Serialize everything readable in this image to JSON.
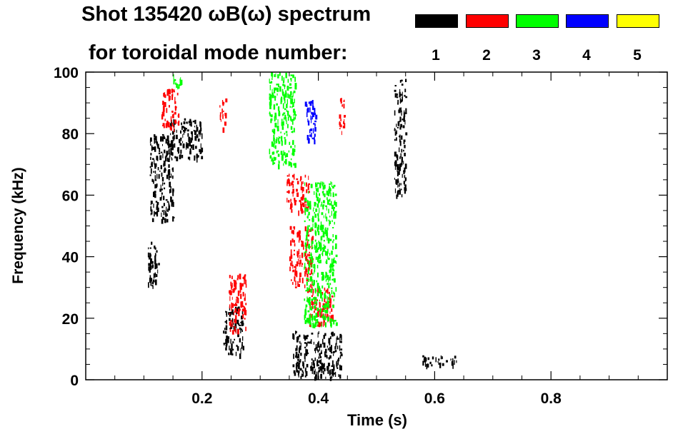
{
  "header": {
    "title": "Shot 135420 ωB(ω) spectrum",
    "subtitle": "for toroidal mode number:"
  },
  "legend": [
    {
      "label": "1",
      "color": "#000000"
    },
    {
      "label": "2",
      "color": "#ff0000"
    },
    {
      "label": "3",
      "color": "#00ff00"
    },
    {
      "label": "4",
      "color": "#0000ff"
    },
    {
      "label": "5",
      "color": "#ffff00"
    }
  ],
  "chart_data": {
    "type": "heatmap",
    "title": "Shot 135420 ωB(ω) spectrum",
    "xlabel": "Time (s)",
    "ylabel": "Frequency (kHz)",
    "xlim": [
      0.0,
      1.0
    ],
    "ylim": [
      0,
      100
    ],
    "xticks": [
      0.2,
      0.4,
      0.6,
      0.8
    ],
    "yticks": [
      0,
      20,
      40,
      60,
      80,
      100
    ],
    "grid": false,
    "legend_position": "top-right",
    "series": [
      {
        "name": "1",
        "color": "#000000",
        "regions": [
          {
            "t": [
              0.105,
              0.125
            ],
            "f": [
              30,
              45
            ]
          },
          {
            "t": [
              0.11,
              0.15
            ],
            "f": [
              52,
              80
            ]
          },
          {
            "t": [
              0.14,
              0.2
            ],
            "f": [
              72,
              85
            ]
          },
          {
            "t": [
              0.235,
              0.27
            ],
            "f": [
              8,
              24
            ]
          },
          {
            "t": [
              0.355,
              0.44
            ],
            "f": [
              1,
              16
            ]
          },
          {
            "t": [
              0.53,
              0.55
            ],
            "f": [
              60,
              98
            ]
          },
          {
            "t": [
              0.575,
              0.64
            ],
            "f": [
              5,
              8
            ]
          }
        ]
      },
      {
        "name": "2",
        "color": "#ff0000",
        "regions": [
          {
            "t": [
              0.13,
              0.16
            ],
            "f": [
              82,
              95
            ]
          },
          {
            "t": [
              0.23,
              0.24
            ],
            "f": [
              82,
              92
            ]
          },
          {
            "t": [
              0.245,
              0.275
            ],
            "f": [
              16,
              35
            ]
          },
          {
            "t": [
              0.345,
              0.385
            ],
            "f": [
              55,
              67
            ]
          },
          {
            "t": [
              0.35,
              0.39
            ],
            "f": [
              30,
              50
            ]
          },
          {
            "t": [
              0.38,
              0.425
            ],
            "f": [
              18,
              30
            ]
          },
          {
            "t": [
              0.435,
              0.445
            ],
            "f": [
              80,
              92
            ]
          }
        ]
      },
      {
        "name": "3",
        "color": "#00ff00",
        "regions": [
          {
            "t": [
              0.15,
              0.165
            ],
            "f": [
              95,
              100
            ]
          },
          {
            "t": [
              0.315,
              0.36
            ],
            "f": [
              70,
              100
            ]
          },
          {
            "t": [
              0.375,
              0.43
            ],
            "f": [
              18,
              65
            ]
          }
        ]
      },
      {
        "name": "4",
        "color": "#0000ff",
        "regions": [
          {
            "t": [
              0.375,
              0.395
            ],
            "f": [
              78,
              91
            ]
          }
        ]
      },
      {
        "name": "5",
        "color": "#ffff00",
        "regions": []
      }
    ]
  }
}
